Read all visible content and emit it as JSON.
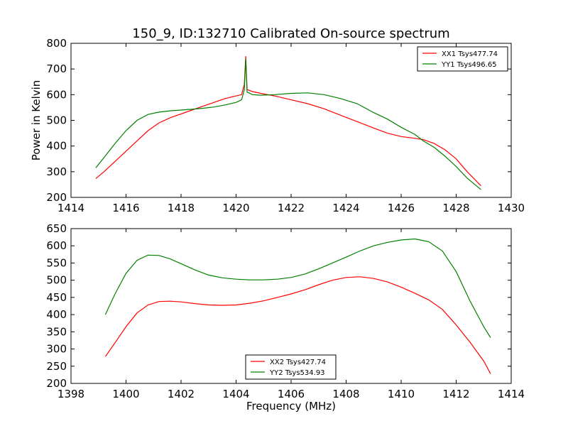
{
  "title": "150_9, ID:132710 Calibrated On-source spectrum",
  "colors": {
    "xx": "#ff0000",
    "yy": "#008000"
  },
  "chart_data": [
    {
      "type": "line",
      "ylabel": "Power in Kelvin",
      "xlabel": "",
      "xlim": [
        1414,
        1430
      ],
      "ylim": [
        200,
        800
      ],
      "xticks": [
        1414,
        1416,
        1418,
        1420,
        1422,
        1424,
        1426,
        1428,
        1430
      ],
      "yticks": [
        200,
        300,
        400,
        500,
        600,
        700,
        800
      ],
      "legend": {
        "placement": "top-right"
      },
      "series": [
        {
          "name": "XX1 Tsys477.74",
          "color": "#ff0000",
          "x": [
            1414.9,
            1415.2,
            1415.6,
            1416.0,
            1416.4,
            1416.8,
            1417.2,
            1417.6,
            1418.0,
            1418.4,
            1418.8,
            1419.2,
            1419.6,
            1420.0,
            1420.2,
            1420.3,
            1420.35,
            1420.4,
            1420.6,
            1420.9,
            1421.4,
            1422.0,
            1422.6,
            1423.2,
            1423.8,
            1424.4,
            1425.0,
            1425.5,
            1426.0,
            1426.5,
            1426.8,
            1427.2,
            1427.6,
            1428.0,
            1428.4,
            1428.9
          ],
          "y": [
            273,
            300,
            340,
            380,
            420,
            460,
            490,
            510,
            525,
            540,
            555,
            570,
            585,
            595,
            600,
            640,
            750,
            620,
            612,
            605,
            595,
            580,
            565,
            545,
            520,
            495,
            470,
            450,
            437,
            430,
            425,
            410,
            385,
            350,
            300,
            245
          ]
        },
        {
          "name": "YY1 Tsys496.65",
          "color": "#008000",
          "x": [
            1414.9,
            1415.2,
            1415.6,
            1416.0,
            1416.4,
            1416.8,
            1417.2,
            1417.6,
            1418.0,
            1418.4,
            1418.8,
            1419.2,
            1419.6,
            1420.0,
            1420.2,
            1420.3,
            1420.35,
            1420.4,
            1420.6,
            1420.9,
            1421.4,
            1422.0,
            1422.6,
            1423.2,
            1423.8,
            1424.4,
            1425.0,
            1425.5,
            1426.0,
            1426.5,
            1426.8,
            1427.2,
            1427.6,
            1428.0,
            1428.4,
            1428.9
          ],
          "y": [
            315,
            355,
            410,
            460,
            500,
            523,
            532,
            537,
            540,
            543,
            547,
            552,
            560,
            570,
            580,
            620,
            740,
            610,
            600,
            598,
            600,
            605,
            607,
            600,
            585,
            565,
            530,
            505,
            473,
            445,
            420,
            395,
            360,
            320,
            275,
            230
          ]
        }
      ]
    },
    {
      "type": "line",
      "ylabel": "",
      "xlabel": "Frequency (MHz)",
      "xlim": [
        1398,
        1414
      ],
      "ylim": [
        200,
        650
      ],
      "xticks": [
        1398,
        1400,
        1402,
        1404,
        1406,
        1408,
        1410,
        1412,
        1414
      ],
      "yticks": [
        200,
        250,
        300,
        350,
        400,
        450,
        500,
        550,
        600,
        650
      ],
      "legend": {
        "placement": "lower-center"
      },
      "series": [
        {
          "name": "XX2 Tsys427.74",
          "color": "#ff0000",
          "x": [
            1399.25,
            1399.6,
            1400.0,
            1400.4,
            1400.8,
            1401.2,
            1401.6,
            1402.0,
            1402.5,
            1403.0,
            1403.5,
            1404.0,
            1404.5,
            1405.0,
            1405.5,
            1406.0,
            1406.5,
            1407.0,
            1407.5,
            1408.0,
            1408.5,
            1409.0,
            1409.5,
            1410.0,
            1410.5,
            1411.0,
            1411.5,
            1412.0,
            1412.5,
            1413.0,
            1413.25
          ],
          "y": [
            278,
            318,
            365,
            405,
            428,
            438,
            439,
            437,
            432,
            428,
            427,
            428,
            433,
            440,
            450,
            460,
            472,
            487,
            500,
            508,
            510,
            505,
            495,
            480,
            462,
            443,
            415,
            370,
            320,
            265,
            228
          ]
        },
        {
          "name": "YY2 Tsys534.93",
          "color": "#008000",
          "x": [
            1399.25,
            1399.6,
            1400.0,
            1400.4,
            1400.8,
            1401.2,
            1401.6,
            1402.0,
            1402.5,
            1403.0,
            1403.5,
            1404.0,
            1404.5,
            1405.0,
            1405.5,
            1406.0,
            1406.5,
            1407.0,
            1407.5,
            1408.0,
            1408.5,
            1409.0,
            1409.5,
            1410.0,
            1410.5,
            1411.0,
            1411.5,
            1412.0,
            1412.5,
            1413.0,
            1413.25
          ],
          "y": [
            400,
            460,
            520,
            558,
            573,
            572,
            562,
            548,
            530,
            515,
            507,
            503,
            501,
            501,
            503,
            508,
            518,
            533,
            550,
            567,
            585,
            600,
            610,
            617,
            620,
            612,
            585,
            525,
            440,
            365,
            333
          ]
        }
      ]
    }
  ]
}
